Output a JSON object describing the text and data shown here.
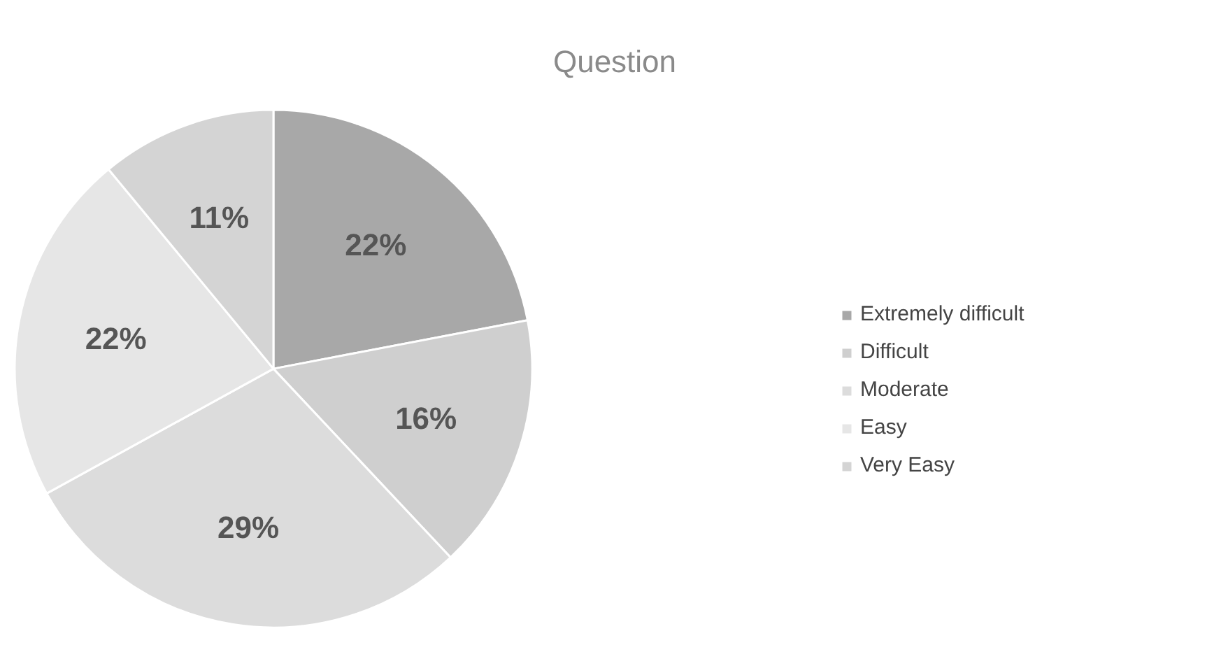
{
  "chart_data": {
    "type": "pie",
    "title": "Question",
    "categories": [
      "Extremely difficult",
      "Difficult",
      "Moderate",
      "Easy",
      "Very Easy"
    ],
    "values": [
      22,
      16,
      29,
      22,
      11
    ],
    "value_labels": [
      "22%",
      "16%",
      "29%",
      "22%",
      "11%"
    ],
    "colors": [
      "#a8a8a8",
      "#cfcfcf",
      "#dcdcdc",
      "#e6e6e6",
      "#d4d4d4"
    ],
    "legend": "right"
  }
}
